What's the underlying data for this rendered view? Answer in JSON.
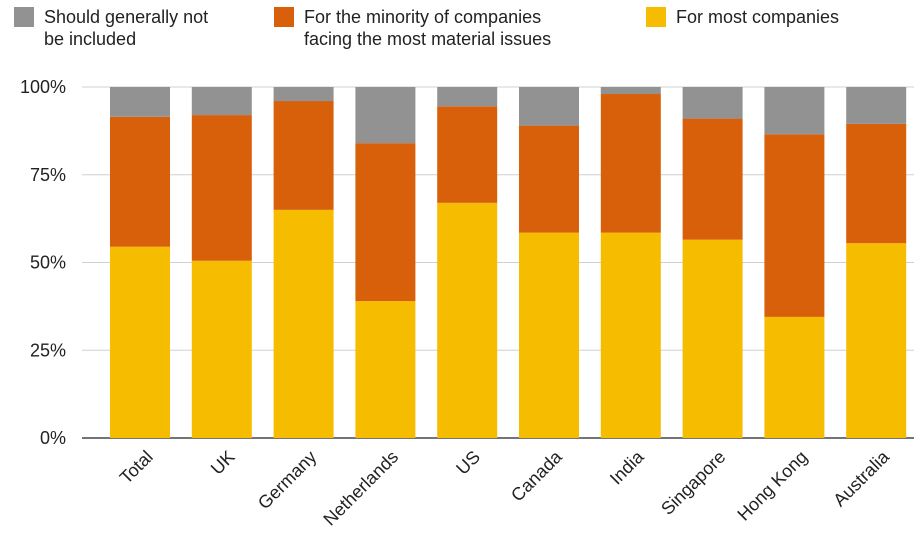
{
  "chart_data": {
    "type": "bar",
    "stacked": true,
    "categories": [
      "Total",
      "UK",
      "Germany",
      "Netherlands",
      "US",
      "Canada",
      "India",
      "Singapore",
      "Hong Kong",
      "Australia"
    ],
    "series": [
      {
        "name": "For most companies",
        "color": "#F6BC00",
        "values": [
          54.5,
          50.5,
          65,
          39,
          67,
          58.5,
          58.5,
          56.5,
          34.5,
          55.5
        ]
      },
      {
        "name": "For the minority of companies\nfacing the most material issues",
        "color": "#D9600A",
        "values": [
          37,
          41.5,
          31,
          45,
          27.5,
          30.5,
          39.5,
          34.5,
          52,
          34
        ]
      },
      {
        "name": "Should generally not\nbe included",
        "color": "#929292",
        "values": [
          8.5,
          8,
          4,
          16,
          5.5,
          11,
          2,
          9,
          13.5,
          10.5
        ]
      }
    ],
    "yticks": [
      "0%",
      "25%",
      "50%",
      "75%",
      "100%"
    ],
    "ylim": [
      0,
      100
    ],
    "grid": true,
    "legend_placement": "top"
  },
  "legend": [
    {
      "label": "Should generally not\nbe included",
      "color": "#929292"
    },
    {
      "label": "For the minority of companies\nfacing the most material issues",
      "color": "#D9600A"
    },
    {
      "label": "For most companies",
      "color": "#F6BC00"
    }
  ]
}
